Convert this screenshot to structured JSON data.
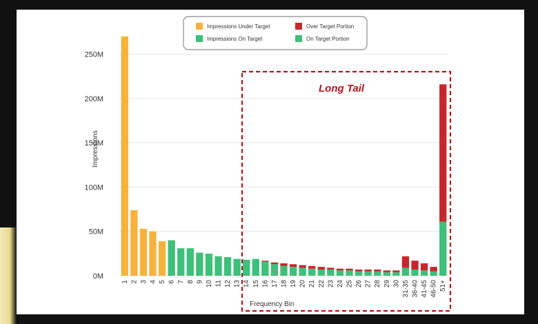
{
  "colors": {
    "under_target": "#f6b23c",
    "on_target": "#3ec07a",
    "over_target": "#c8262b",
    "annotation": "#b3141c"
  },
  "legend": {
    "items": [
      {
        "label": "Impressions Under Target",
        "color": "#f6b23c"
      },
      {
        "label": "Over Target Portion",
        "color": "#c8262b"
      },
      {
        "label": "Impressions On Target",
        "color": "#3ec07a"
      },
      {
        "label": "On Target Portion",
        "color": "#3ec07a"
      }
    ]
  },
  "annotation": {
    "label": "Long Tail"
  },
  "chart_data": {
    "type": "bar",
    "stacked": true,
    "xlabel": "Frequency Bin",
    "ylabel": "Impressions",
    "ylim": [
      0,
      280
    ],
    "yunit": "M",
    "yticks": [
      "0M",
      "50M",
      "100M",
      "150M",
      "200M",
      "250M"
    ],
    "ytick_values": [
      0,
      50,
      100,
      150,
      200,
      250
    ],
    "grid": true,
    "legend_position": "top-center",
    "categories": [
      "1",
      "2",
      "3",
      "4",
      "5",
      "6",
      "7",
      "8",
      "9",
      "10",
      "11",
      "12",
      "13",
      "14",
      "15",
      "16",
      "17",
      "18",
      "19",
      "20",
      "21",
      "22",
      "23",
      "24",
      "25",
      "26",
      "27",
      "28",
      "29",
      "30",
      "31-35",
      "36-40",
      "41-45",
      "46-50",
      "51+"
    ],
    "series": [
      {
        "name": "Impressions Under Target",
        "values": [
          270,
          74,
          53,
          50,
          39,
          0,
          0,
          0,
          0,
          0,
          0,
          0,
          0,
          0,
          0,
          0,
          0,
          0,
          0,
          0,
          0,
          0,
          0,
          0,
          0,
          0,
          0,
          0,
          0,
          0,
          0,
          0,
          0,
          0,
          0
        ]
      },
      {
        "name": "Impressions On Target",
        "values": [
          0,
          0,
          0,
          0,
          0,
          40,
          31,
          31,
          26,
          25,
          22,
          21,
          19,
          18,
          19,
          16,
          13,
          11,
          10,
          9,
          8,
          7,
          7,
          6,
          6,
          5,
          5,
          5,
          4,
          4,
          9,
          7,
          6,
          5,
          61
        ]
      },
      {
        "name": "Over Target Portion",
        "values": [
          0,
          0,
          0,
          0,
          0,
          0,
          0,
          0,
          0,
          0,
          0,
          0,
          0,
          0,
          0,
          1,
          2,
          3,
          3,
          3,
          3,
          3,
          2,
          2,
          2,
          2,
          2,
          2,
          2,
          2,
          13,
          10,
          8,
          5,
          155
        ]
      }
    ]
  }
}
